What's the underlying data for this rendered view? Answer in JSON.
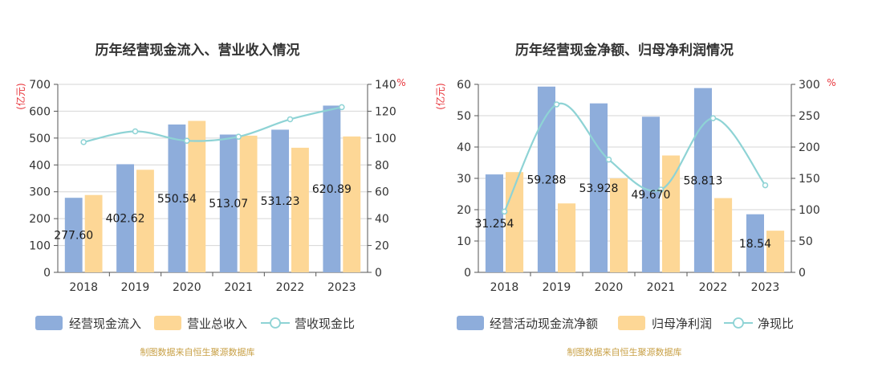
{
  "chart_data": [
    {
      "type": "bar",
      "title": "历年经营现金流入、营业收入情况",
      "ylabel": "(亿元)",
      "y2label": "%",
      "ylim": [
        0,
        700
      ],
      "yticks": [
        "0",
        "100",
        "200",
        "300",
        "400",
        "500",
        "600",
        "700"
      ],
      "y2lim": [
        0,
        140
      ],
      "y2ticks": [
        "0",
        "20",
        "40",
        "60",
        "80",
        "100",
        "120",
        "140"
      ],
      "categories": [
        "2018",
        "2019",
        "2020",
        "2021",
        "2022",
        "2023"
      ],
      "series": [
        {
          "name": "经营现金流入",
          "kind": "bar",
          "axis": "left",
          "color": "#8eaddb",
          "values": [
            277.6,
            402.62,
            550.54,
            513.07,
            531.23,
            620.89
          ],
          "labels": [
            "277.60",
            "402.62",
            "550.54",
            "513.07",
            "531.23",
            "620.89"
          ]
        },
        {
          "name": "营业总收入",
          "kind": "bar",
          "axis": "left",
          "color": "#fdd796",
          "values": [
            288,
            382,
            564,
            509,
            464,
            506
          ]
        },
        {
          "name": "营收现金比",
          "kind": "line",
          "axis": "right",
          "color": "#8ed3d5",
          "values": [
            97,
            105,
            98,
            101,
            114,
            123
          ]
        }
      ],
      "legend_position": "bottom",
      "grid": true,
      "footer": "制图数据来自恒生聚源数据库"
    },
    {
      "type": "bar",
      "title": "历年经营现金净额、归母净利润情况",
      "ylabel": "(亿元)",
      "y2label": "%",
      "ylim": [
        0,
        60
      ],
      "yticks": [
        "0",
        "10",
        "20",
        "30",
        "40",
        "50",
        "60"
      ],
      "y2lim": [
        0,
        300
      ],
      "y2ticks": [
        "0",
        "50",
        "100",
        "150",
        "200",
        "250",
        "300"
      ],
      "categories": [
        "2018",
        "2019",
        "2020",
        "2021",
        "2022",
        "2023"
      ],
      "series": [
        {
          "name": "经营活动现金流净额",
          "kind": "bar",
          "axis": "left",
          "color": "#8eaddb",
          "values": [
            31.254,
            59.288,
            53.928,
            49.67,
            58.813,
            18.54
          ],
          "labels": [
            "31.254",
            "59.288",
            "53.928",
            "49.670",
            "58.813",
            "18.54"
          ]
        },
        {
          "name": "归母净利润",
          "kind": "bar",
          "axis": "left",
          "color": "#fdd796",
          "values": [
            32,
            22,
            30,
            37.3,
            23.7,
            13.3
          ]
        },
        {
          "name": "净现比",
          "kind": "line",
          "axis": "right",
          "color": "#8ed3d5",
          "values": [
            97,
            268,
            180,
            132,
            246,
            139
          ]
        }
      ],
      "legend_position": "bottom",
      "grid": true,
      "footer": "制图数据来自恒生聚源数据库"
    }
  ]
}
